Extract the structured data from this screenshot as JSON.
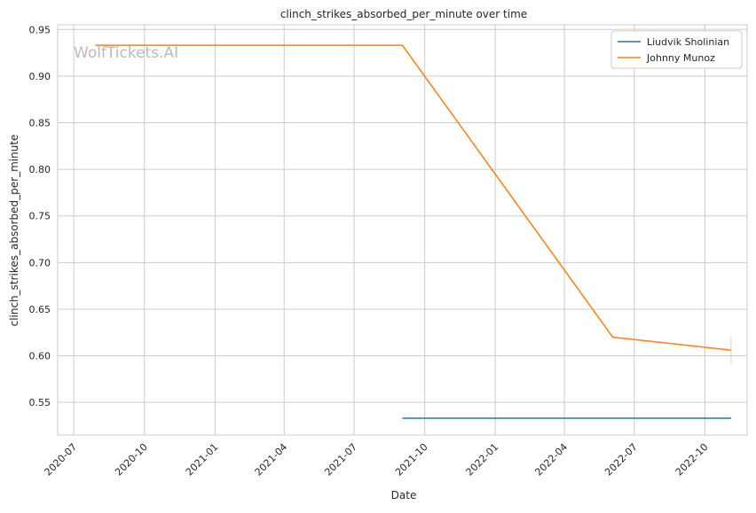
{
  "chart_data": {
    "type": "line",
    "title": "clinch_strikes_absorbed_per_minute over time",
    "xlabel": "Date",
    "ylabel": "clinch_strikes_absorbed_per_minute",
    "watermark": "WolfTickets.AI",
    "ylim": [
      0.515,
      0.955
    ],
    "xlim": [
      "2020-06-10",
      "2022-11-25"
    ],
    "yticks": [
      0.55,
      0.6,
      0.65,
      0.7,
      0.75,
      0.8,
      0.85,
      0.9,
      0.95
    ],
    "xticks": [
      "2020-07",
      "2020-10",
      "2021-01",
      "2021-04",
      "2021-07",
      "2021-10",
      "2022-01",
      "2022-04",
      "2022-07",
      "2022-10"
    ],
    "grid": true,
    "legend_position": "top-right",
    "series": [
      {
        "name": "Liudvik Sholinian",
        "color": "#1f77b4",
        "x": [
          "2021-09-02",
          "2022-11-04"
        ],
        "y": [
          0.533,
          0.533
        ]
      },
      {
        "name": "Johnny Munoz",
        "color": "#ff7f0e",
        "x": [
          "2020-07-29",
          "2021-09-02",
          "2022-06-03",
          "2022-11-04"
        ],
        "y": [
          0.933,
          0.933,
          0.62,
          0.606
        ],
        "interval_last": [
          0.591,
          0.621
        ]
      }
    ]
  }
}
